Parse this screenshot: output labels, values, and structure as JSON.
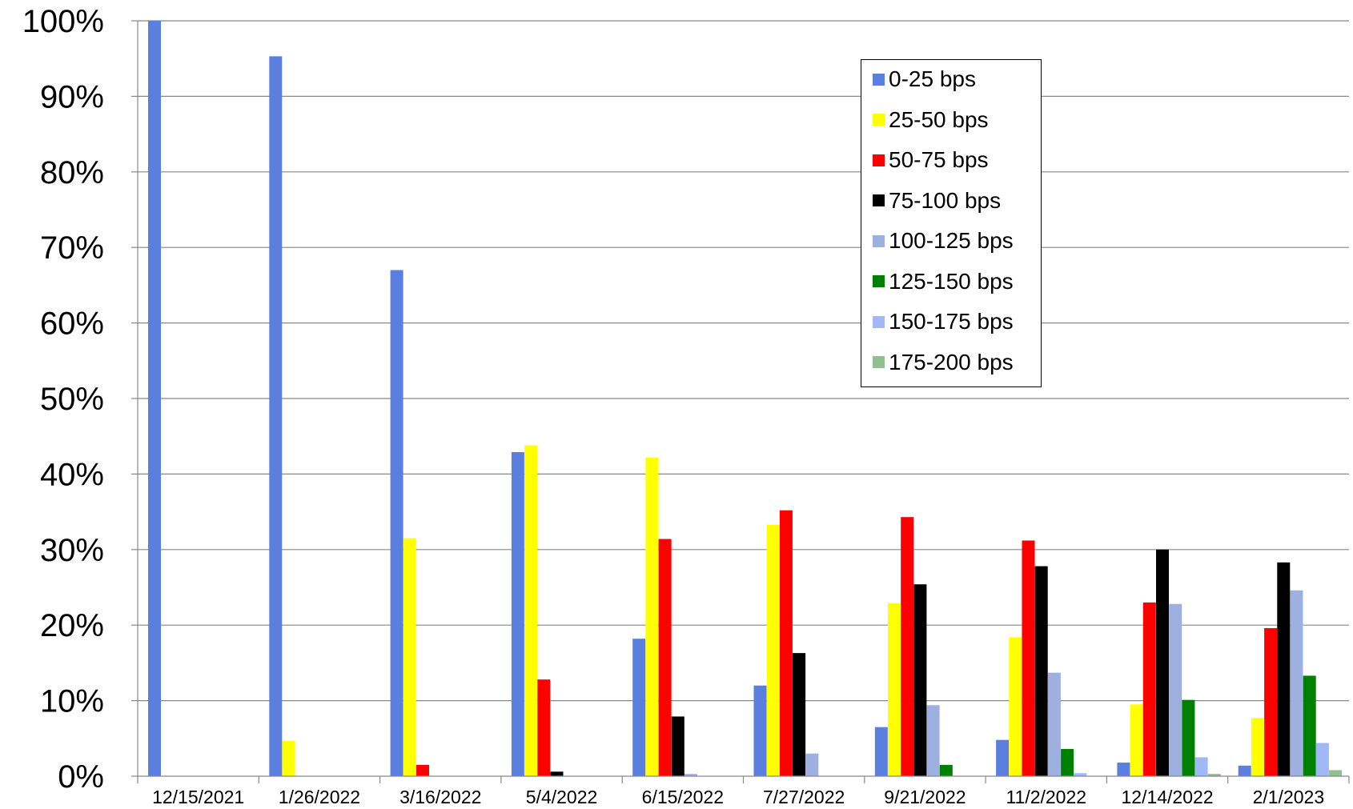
{
  "chart_data": {
    "type": "bar",
    "title": "",
    "xlabel": "",
    "ylabel": "",
    "ylim": [
      0,
      100
    ],
    "yticks": [
      "0%",
      "10%",
      "20%",
      "30%",
      "40%",
      "50%",
      "60%",
      "70%",
      "80%",
      "90%",
      "100%"
    ],
    "grid": "horizontal",
    "legend_position": "top-right",
    "categories": [
      "12/15/2021",
      "1/26/2022",
      "3/16/2022",
      "5/4/2022",
      "6/15/2022",
      "7/27/2022",
      "9/21/2022",
      "11/2/2022",
      "12/14/2022",
      "2/1/2023"
    ],
    "series": [
      {
        "name": "0-25 bps",
        "color": "#5B7FDE",
        "values": [
          100,
          95.3,
          67,
          42.9,
          18.2,
          12,
          6.5,
          4.8,
          1.8,
          1.4
        ]
      },
      {
        "name": "25-50 bps",
        "color": "#FFFF00",
        "values": [
          0,
          4.7,
          31.5,
          43.8,
          42.2,
          33.3,
          22.9,
          18.4,
          9.5,
          7.7
        ]
      },
      {
        "name": "50-75 bps",
        "color": "#FF0000",
        "values": [
          0,
          0,
          1.5,
          12.8,
          31.4,
          35.2,
          34.3,
          31.2,
          23,
          19.6
        ]
      },
      {
        "name": "75-100 bps",
        "color": "#000000",
        "values": [
          0,
          0,
          0,
          0.6,
          7.9,
          16.3,
          25.4,
          27.8,
          30,
          28.3
        ]
      },
      {
        "name": "100-125 bps",
        "color": "#9DB0E0",
        "values": [
          0,
          0,
          0,
          0,
          0.3,
          3,
          9.4,
          13.7,
          22.8,
          24.6
        ]
      },
      {
        "name": "125-150 bps",
        "color": "#008000",
        "values": [
          0,
          0,
          0,
          0,
          0,
          0,
          1.5,
          3.6,
          10.1,
          13.3
        ]
      },
      {
        "name": "150-175 bps",
        "color": "#A0B8F5",
        "values": [
          0,
          0,
          0,
          0,
          0,
          0,
          0,
          0.4,
          2.5,
          4.4
        ]
      },
      {
        "name": "175-200 bps",
        "color": "#8FC08F",
        "values": [
          0,
          0,
          0,
          0,
          0,
          0,
          0,
          0,
          0.3,
          0.8
        ]
      }
    ]
  }
}
